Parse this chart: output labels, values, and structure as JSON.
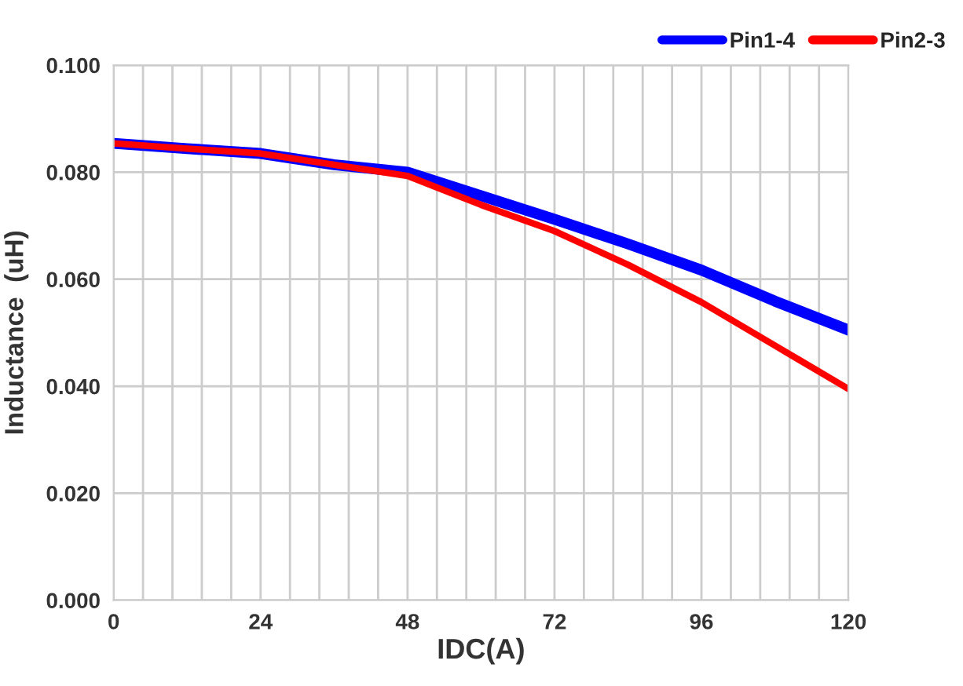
{
  "chart_data": {
    "type": "line",
    "xlabel": "IDC(A)",
    "ylabel": "Inductance  (uH)",
    "x": [
      0,
      12,
      24,
      36,
      48,
      60,
      72,
      84,
      96,
      108,
      120
    ],
    "series": [
      {
        "name": "Pin1-4",
        "color": "#0000ff",
        "values": [
          0.0854,
          0.0844,
          0.0835,
          0.0814,
          0.08,
          0.0756,
          0.0712,
          0.0666,
          0.0617,
          0.0559,
          0.0505
        ]
      },
      {
        "name": "Pin2-3",
        "color": "#ff0000",
        "values": [
          0.0854,
          0.0844,
          0.0835,
          0.0814,
          0.0793,
          0.0739,
          0.069,
          0.0627,
          0.0557,
          0.0476,
          0.0395
        ]
      }
    ],
    "xlim": [
      0,
      120
    ],
    "xticks": [
      0,
      {
        "value": 4.8,
        "label": null
      },
      {
        "value": 9.6,
        "label": null
      },
      {
        "value": 14.4,
        "label": null
      },
      {
        "value": 19.2,
        "label": null
      },
      24,
      {
        "value": 28.8,
        "label": null
      },
      {
        "value": 33.6,
        "label": null
      },
      {
        "value": 38.4,
        "label": null
      },
      {
        "value": 43.2,
        "label": null
      },
      48,
      {
        "value": 52.8,
        "label": null
      },
      {
        "value": 57.6,
        "label": null
      },
      {
        "value": 62.4,
        "label": null
      },
      {
        "value": 67.2,
        "label": null
      },
      72,
      {
        "value": 76.8,
        "label": null
      },
      {
        "value": 81.6,
        "label": null
      },
      {
        "value": 86.4,
        "label": null
      },
      {
        "value": 91.2,
        "label": null
      },
      96,
      {
        "value": 100.8,
        "label": null
      },
      {
        "value": 105.6,
        "label": null
      },
      {
        "value": 110.4,
        "label": null
      },
      {
        "value": 115.2,
        "label": null
      },
      120
    ],
    "ylim": [
      0,
      0.1
    ],
    "yticks": [
      {
        "value": 0,
        "label": "0.000"
      },
      {
        "value": 0.02,
        "label": "0.020"
      },
      {
        "value": 0.04,
        "label": "0.040"
      },
      {
        "value": 0.06,
        "label": "0.060"
      },
      {
        "value": 0.08,
        "label": "0.080"
      },
      {
        "value": 0.1,
        "label": "0.100"
      }
    ],
    "grid": true,
    "legend": "top right",
    "marker": "none",
    "line_style": "solid"
  }
}
